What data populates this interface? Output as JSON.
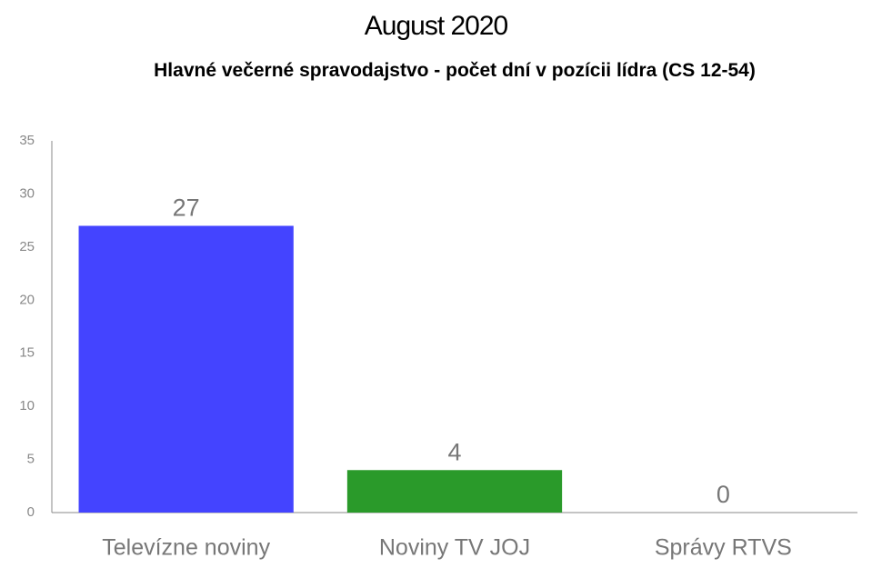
{
  "chart_data": {
    "type": "bar",
    "title": "August 2020",
    "subtitle": "Hlavné večerné spravodajstvo - počet dní v pozícii lídra (CS 12-54)",
    "categories": [
      "Televízne noviny",
      "Noviny TV JOJ",
      "Správy RTVS"
    ],
    "values": [
      27,
      4,
      0
    ],
    "colors": [
      "#4444ff",
      "#2a9a2a",
      "#888888"
    ],
    "ylim": [
      0,
      35
    ],
    "yticks": [
      0,
      5,
      10,
      15,
      20,
      25,
      30,
      35
    ],
    "grid": false
  }
}
